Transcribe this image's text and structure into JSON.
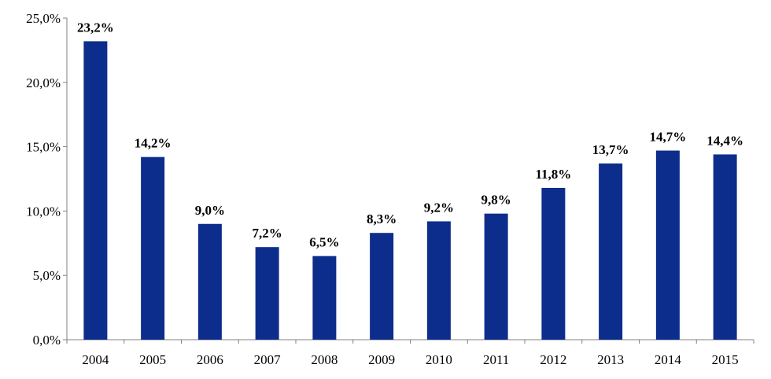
{
  "chart_data": {
    "type": "bar",
    "categories": [
      "2004",
      "2005",
      "2006",
      "2007",
      "2008",
      "2009",
      "2010",
      "2011",
      "2012",
      "2013",
      "2014",
      "2015"
    ],
    "values": [
      23.2,
      14.2,
      9.0,
      7.2,
      6.5,
      8.3,
      9.2,
      9.8,
      11.8,
      13.7,
      14.7,
      14.4
    ],
    "data_labels": [
      "23,2%",
      "14,2%",
      "9,0%",
      "7,2%",
      "6,5%",
      "8,3%",
      "9,2%",
      "9,8%",
      "11,8%",
      "13,7%",
      "14,7%",
      "14,4%"
    ],
    "y_ticks": [
      0,
      5,
      10,
      15,
      20,
      25
    ],
    "y_tick_labels": [
      "0,0%",
      "5,0%",
      "10,0%",
      "15,0%",
      "20,0%",
      "25,0%"
    ],
    "ylim": [
      0,
      25
    ],
    "bar_color": "#0D2D8C",
    "grid": false,
    "title": "",
    "xlabel": "",
    "ylabel": ""
  }
}
